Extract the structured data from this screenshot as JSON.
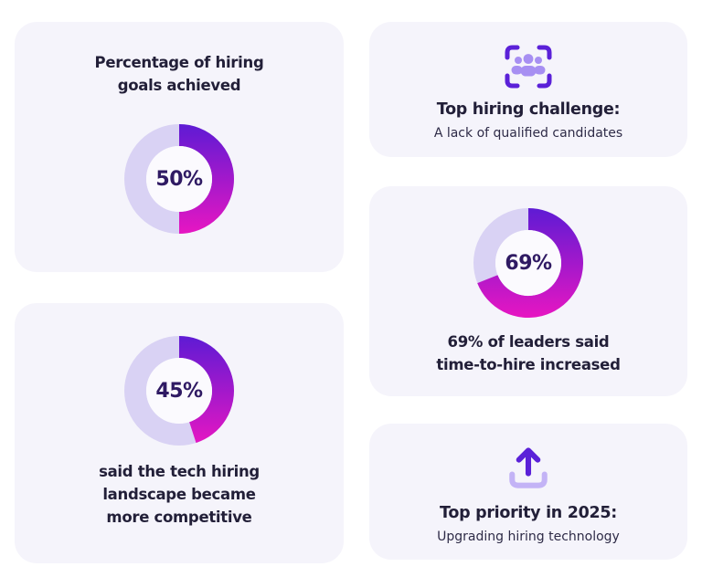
{
  "theme": {
    "page_bg": "#ffffff",
    "card_bg": "#f5f4fb",
    "accent_violet": "#5e1bd4",
    "accent_magenta": "#e716c2",
    "donut_track": "#d9d2f4",
    "donut_center": "#fbfafe",
    "heading_color": "#221f38",
    "body_color": "#2e2b47",
    "pct_color": "#2f1a63",
    "icon_violet": "#5b21d8",
    "icon_people_purple": "#a78ff2",
    "icon_tray_lavender": "#c3b3f6"
  },
  "cards": {
    "goals": {
      "title": "Percentage of hiring\ngoals achieved",
      "pct": 50,
      "pct_label": "50%"
    },
    "challenge": {
      "icon": "users-viewfinder-icon",
      "title": "Top hiring challenge:",
      "subtitle": "A lack of qualified candidates"
    },
    "time_to_hire": {
      "pct": 69,
      "pct_label": "69%",
      "caption": "69% of leaders said\ntime-to-hire increased"
    },
    "competitive": {
      "pct": 45,
      "pct_label": "45%",
      "caption": "said the tech hiring\nlandscape became\nmore competitive"
    },
    "priority": {
      "icon": "upload-icon",
      "title": "Top priority in 2025:",
      "subtitle": "Upgrading hiring technology"
    }
  },
  "chart_data": [
    {
      "type": "pie",
      "subtype": "donut",
      "title": "Percentage of hiring goals achieved",
      "labels": [
        "achieved",
        "remaining"
      ],
      "values": [
        50,
        50
      ],
      "center_label": "50%",
      "start_angle_deg": 0,
      "direction": "clockwise",
      "fill": "gradient violet #5e1bd4 to magenta #e716c2",
      "track_color": "#d9d2f4"
    },
    {
      "type": "pie",
      "subtype": "donut",
      "title": "69% of leaders said time-to-hire increased",
      "labels": [
        "increased",
        "remaining"
      ],
      "values": [
        69,
        31
      ],
      "center_label": "69%",
      "start_angle_deg": 0,
      "direction": "clockwise",
      "fill": "gradient violet #5e1bd4 to magenta #e716c2",
      "track_color": "#d9d2f4"
    },
    {
      "type": "pie",
      "subtype": "donut",
      "title": "said the tech hiring landscape became more competitive",
      "labels": [
        "agreed",
        "remaining"
      ],
      "values": [
        45,
        55
      ],
      "center_label": "45%",
      "start_angle_deg": 0,
      "direction": "clockwise",
      "fill": "gradient violet #5e1bd4 to magenta #e716c2",
      "track_color": "#d9d2f4"
    }
  ]
}
